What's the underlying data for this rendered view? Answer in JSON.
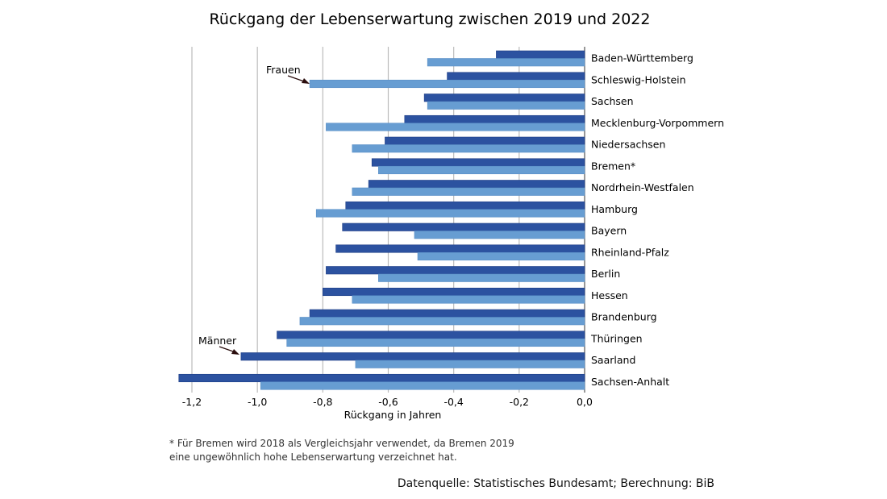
{
  "chart_data": {
    "type": "bar",
    "orientation": "horizontal",
    "title": "Rückgang der Lebenserwartung zwischen 2019 und 2022",
    "xlabel": "Rückgang in Jahren",
    "xlim": [
      -1.3,
      0.0
    ],
    "xticks": [
      -1.2,
      -1.0,
      -0.8,
      -0.6,
      -0.4,
      -0.2,
      0.0
    ],
    "xtick_labels": [
      "-1,2",
      "-1,0",
      "-0,8",
      "-0,6",
      "-0,4",
      "-0,2",
      "0,0"
    ],
    "grid": "vertical",
    "categories": [
      "Baden-Württemberg",
      "Schleswig-Holstein",
      "Sachsen",
      "Mecklenburg-Vorpommern",
      "Niedersachsen",
      "Bremen*",
      "Nordrhein-Westfalen",
      "Hamburg",
      "Bayern",
      "Rheinland-Pfalz",
      "Berlin",
      "Hessen",
      "Brandenburg",
      "Thüringen",
      "Saarland",
      "Sachsen-Anhalt"
    ],
    "series": [
      {
        "name": "Männer",
        "color": "#2c52a0",
        "values": [
          -0.27,
          -0.42,
          -0.49,
          -0.55,
          -0.61,
          -0.65,
          -0.66,
          -0.73,
          -0.74,
          -0.76,
          -0.79,
          -0.8,
          -0.84,
          -0.94,
          -1.05,
          -1.24
        ]
      },
      {
        "name": "Frauen",
        "color": "#679dd2",
        "values": [
          -0.48,
          -0.84,
          -0.48,
          -0.79,
          -0.71,
          -0.63,
          -0.71,
          -0.82,
          -0.52,
          -0.51,
          -0.63,
          -0.71,
          -0.87,
          -0.91,
          -0.7,
          -0.99
        ]
      }
    ],
    "annotations": [
      "Frauen",
      "Männer"
    ]
  },
  "footnote": "* Für Bremen wird 2018 als Vergleichsjahr verwendet, da Bremen 2019 eine ungewöhnlich hohe Lebenserwartung verzeichnet hat.",
  "source": "Datenquelle: Statistisches Bundesamt; Berechnung: BiB"
}
